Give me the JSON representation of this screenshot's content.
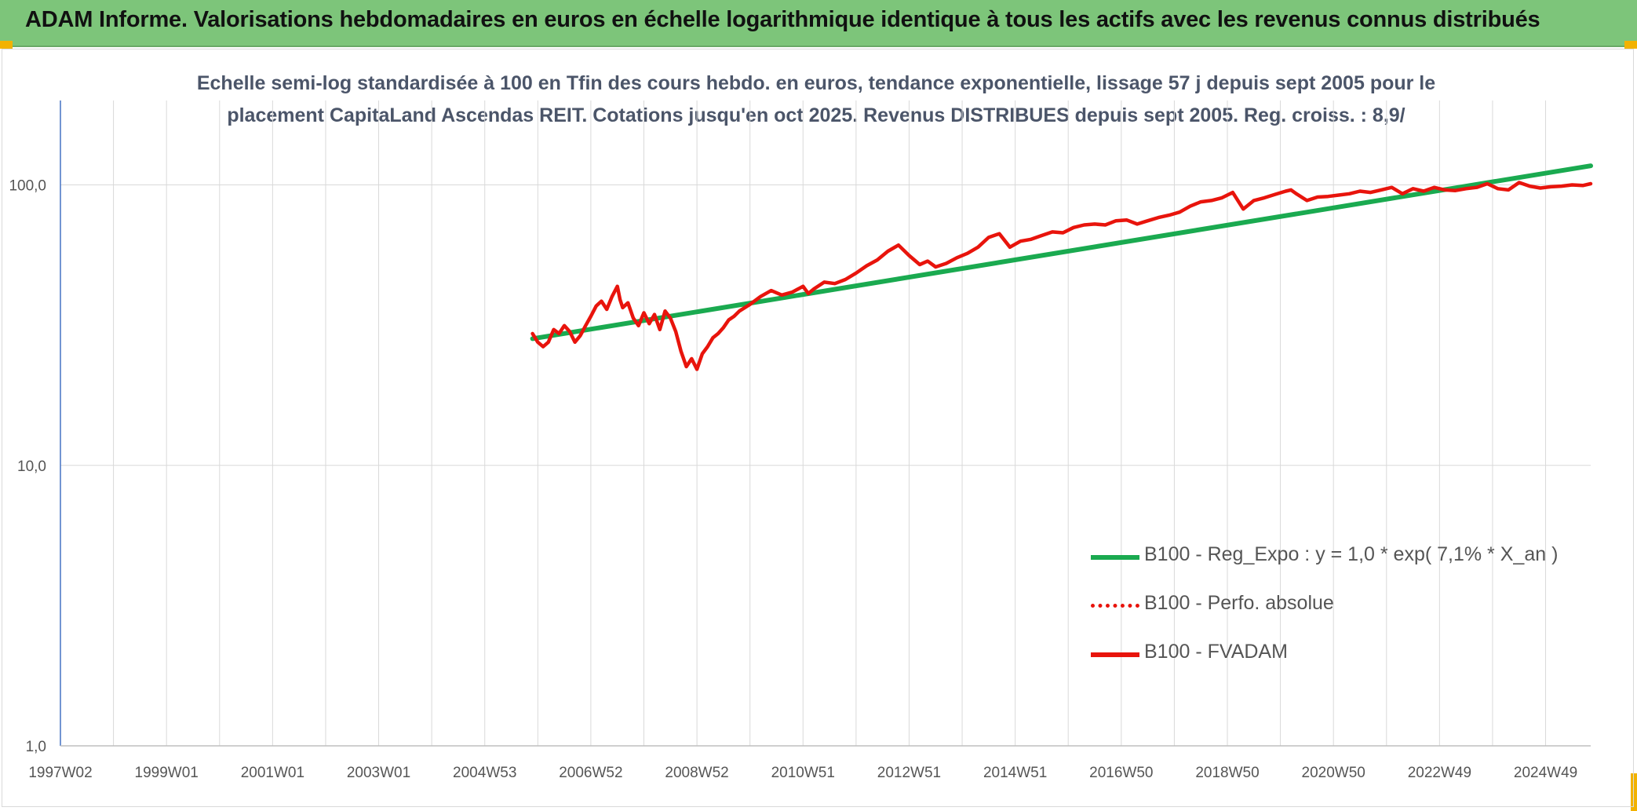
{
  "header": {
    "title": "ADAM Informe. Valorisations hebdomadaires en euros en échelle logarithmique identique à tous les actifs avec les revenus connus distribués"
  },
  "colors": {
    "banner": "#7dc57a",
    "accent": "#f2b200",
    "trend": "#1aaa50",
    "price": "#e8140c",
    "grid": "#d9d9d9",
    "axis": "#4472c4"
  },
  "chart_data": {
    "type": "line",
    "title_lines": [
      "Echelle semi-log standardisée à 100 en Tfin des cours hebdo. en euros, tendance exponentielle, lissage 57 j depuis sept 2005 pour le",
      "placement CapitaLand Ascendas REIT. Cotations jusqu'en oct 2025. Revenus DISTRIBUES depuis sept 2005. Reg. croiss. : 8,9/"
    ],
    "y_scale": "log",
    "ylim": [
      1,
      200
    ],
    "xlim": [
      1997.0,
      2025.85
    ],
    "y_ticks": [
      {
        "value": 1,
        "label": "1,0"
      },
      {
        "value": 10,
        "label": "10,0"
      },
      {
        "value": 100,
        "label": "100,0"
      }
    ],
    "x_ticks": [
      {
        "year": 1997.0,
        "label": "1997W02"
      },
      {
        "year": 1999.0,
        "label": "1999W01"
      },
      {
        "year": 2001.0,
        "label": "2001W01"
      },
      {
        "year": 2003.0,
        "label": "2003W01"
      },
      {
        "year": 2005.0,
        "label": "2004W53"
      },
      {
        "year": 2007.0,
        "label": "2006W52"
      },
      {
        "year": 2009.0,
        "label": "2008W52"
      },
      {
        "year": 2011.0,
        "label": "2010W51"
      },
      {
        "year": 2013.0,
        "label": "2012W51"
      },
      {
        "year": 2015.0,
        "label": "2014W51"
      },
      {
        "year": 2017.0,
        "label": "2016W50"
      },
      {
        "year": 2019.0,
        "label": "2018W50"
      },
      {
        "year": 2021.0,
        "label": "2020W50"
      },
      {
        "year": 2023.0,
        "label": "2022W49"
      },
      {
        "year": 2025.0,
        "label": "2024W49"
      }
    ],
    "grid": true,
    "legend_position": "bottom-right",
    "series": [
      {
        "name": "B100 - Reg_Expo : y = 1,0 * exp( 7,1% *  X_an )",
        "color": "#1aaa50",
        "style": "solid",
        "x": [
          2005.9,
          2025.85
        ],
        "y": [
          28.3,
          117
        ]
      },
      {
        "name": "B100 - Perfo. absolue",
        "color": "#e8140c",
        "style": "dotted",
        "x": [],
        "y": []
      },
      {
        "name": "B100 - FVADAM",
        "color": "#e8140c",
        "style": "solid",
        "x": [
          2005.9,
          2006.0,
          2006.1,
          2006.2,
          2006.3,
          2006.4,
          2006.5,
          2006.6,
          2006.7,
          2006.8,
          2006.9,
          2007.0,
          2007.1,
          2007.2,
          2007.3,
          2007.4,
          2007.5,
          2007.55,
          2007.6,
          2007.7,
          2007.8,
          2007.9,
          2008.0,
          2008.1,
          2008.2,
          2008.3,
          2008.4,
          2008.5,
          2008.6,
          2008.7,
          2008.8,
          2008.9,
          2009.0,
          2009.1,
          2009.2,
          2009.3,
          2009.4,
          2009.5,
          2009.6,
          2009.7,
          2009.8,
          2010.0,
          2010.2,
          2010.4,
          2010.6,
          2010.8,
          2011.0,
          2011.1,
          2011.2,
          2011.4,
          2011.6,
          2011.8,
          2012.0,
          2012.2,
          2012.4,
          2012.6,
          2012.8,
          2013.0,
          2013.2,
          2013.35,
          2013.5,
          2013.7,
          2013.9,
          2014.1,
          2014.3,
          2014.5,
          2014.7,
          2014.9,
          2015.1,
          2015.3,
          2015.5,
          2015.7,
          2015.9,
          2016.1,
          2016.3,
          2016.5,
          2016.7,
          2016.9,
          2017.1,
          2017.3,
          2017.5,
          2017.7,
          2017.9,
          2018.1,
          2018.3,
          2018.5,
          2018.7,
          2018.9,
          2019.1,
          2019.3,
          2019.5,
          2019.7,
          2019.9,
          2020.1,
          2020.2,
          2020.3,
          2020.5,
          2020.7,
          2020.9,
          2021.1,
          2021.3,
          2021.5,
          2021.7,
          2021.9,
          2022.1,
          2022.3,
          2022.5,
          2022.7,
          2022.9,
          2023.1,
          2023.3,
          2023.5,
          2023.7,
          2023.9,
          2024.1,
          2024.3,
          2024.5,
          2024.7,
          2024.9,
          2025.1,
          2025.3,
          2025.5,
          2025.7,
          2025.85
        ],
        "y": [
          29.5,
          27.5,
          26.5,
          27.5,
          30.5,
          29.5,
          31.5,
          30.0,
          27.5,
          29.0,
          31.5,
          34.0,
          37.0,
          38.5,
          36.0,
          40.0,
          43.5,
          39.0,
          36.5,
          38.0,
          33.5,
          31.5,
          35.0,
          32.0,
          34.5,
          30.5,
          35.5,
          33.5,
          30.0,
          25.5,
          22.5,
          24.0,
          22.0,
          25.0,
          26.5,
          28.5,
          29.5,
          31.0,
          33.0,
          34.0,
          35.5,
          37.5,
          40.0,
          42.0,
          40.5,
          41.5,
          43.5,
          41.0,
          42.5,
          45.0,
          44.5,
          46.0,
          48.5,
          51.5,
          54.0,
          58.0,
          61.0,
          56.0,
          52.0,
          53.5,
          51.0,
          52.5,
          55.0,
          57.0,
          60.0,
          65.0,
          67.0,
          60.0,
          63.0,
          64.0,
          66.0,
          68.0,
          67.5,
          70.5,
          72.0,
          72.5,
          72.0,
          74.5,
          75.0,
          72.5,
          74.5,
          76.5,
          78.0,
          80.0,
          84.0,
          87.0,
          88.0,
          90.0,
          94.0,
          82.0,
          88.0,
          90.0,
          92.5,
          95.0,
          96.0,
          93.0,
          88.0,
          90.5,
          91.0,
          92.0,
          93.0,
          95.0,
          94.0,
          96.0,
          98.0,
          93.0,
          97.0,
          95.0,
          98.0,
          96.0,
          95.5,
          97.0,
          98.0,
          101.0,
          97.0,
          96.0,
          102.0,
          99.0,
          97.5,
          98.5,
          99.0,
          100.0,
          99.5,
          101.0
        ]
      }
    ]
  }
}
